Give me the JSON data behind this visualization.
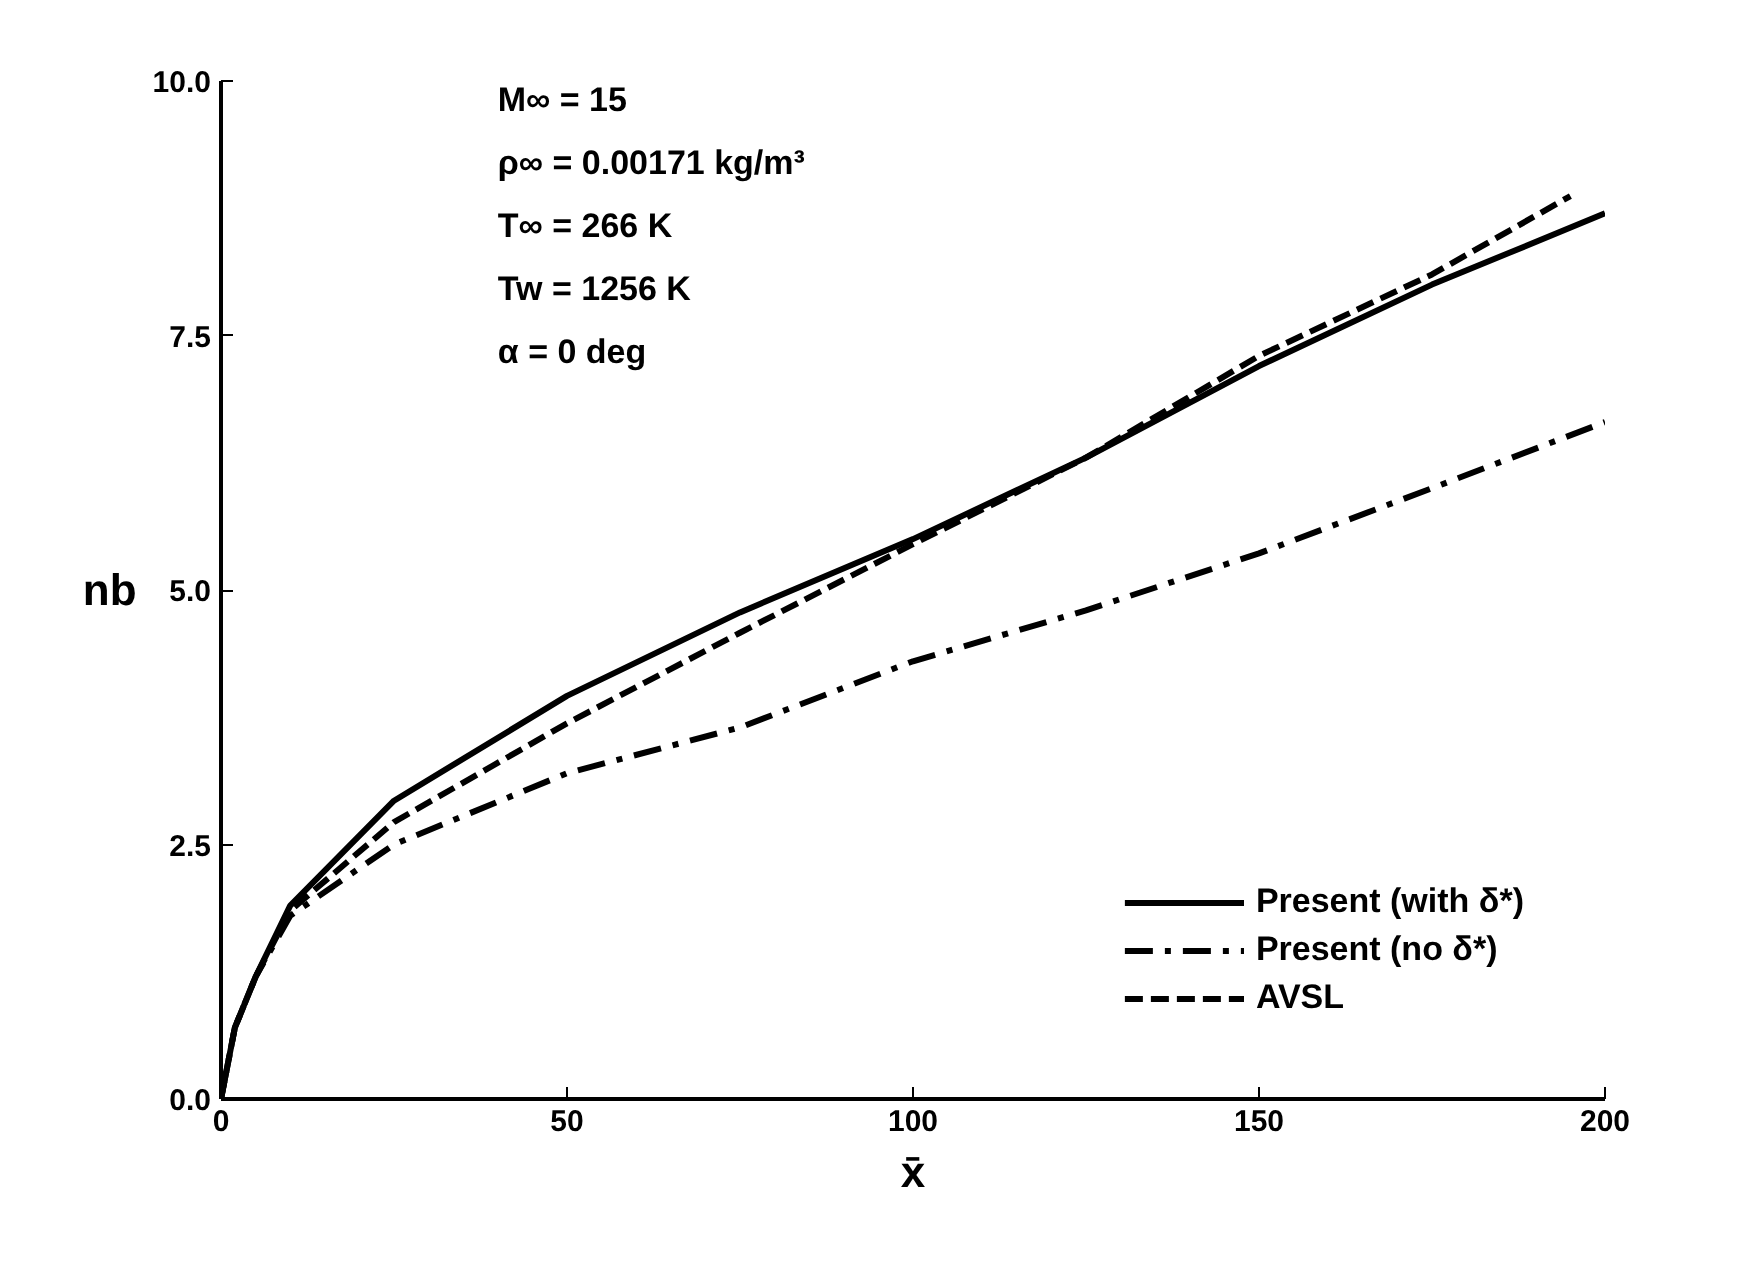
{
  "chart_data": {
    "type": "line",
    "xlabel": "x̄",
    "ylabel": "nb",
    "x": [
      0,
      2,
      5,
      10,
      25,
      50,
      75,
      100,
      125,
      150,
      175,
      200
    ],
    "series": [
      {
        "name": "Present (with δ*)",
        "color": "#000000",
        "line_style": "solid",
        "values": [
          0,
          0.7,
          1.2,
          1.9,
          2.93,
          3.96,
          4.78,
          5.5,
          6.3,
          7.2,
          8.0,
          8.7
        ]
      },
      {
        "name": "Present (no δ*)",
        "color": "#000000",
        "line_style": "dashdot",
        "values": [
          0,
          0.7,
          1.2,
          1.8,
          2.5,
          3.2,
          3.65,
          4.3,
          4.8,
          5.36,
          6.0,
          6.65
        ]
      },
      {
        "name": "AVSL",
        "color": "#000000",
        "line_style": "dashed",
        "x": [
          0,
          2,
          5,
          10,
          25,
          50,
          75,
          100,
          125,
          150,
          175,
          195
        ],
        "values": [
          0,
          0.7,
          1.2,
          1.85,
          2.72,
          3.69,
          4.58,
          5.45,
          6.3,
          7.3,
          8.1,
          8.87
        ]
      }
    ],
    "xlim": [
      0,
      200
    ],
    "ylim": [
      0,
      10
    ],
    "xticks": [
      0,
      50,
      100,
      150,
      200
    ],
    "yticks": [
      {
        "value": 0,
        "label": "0.0"
      },
      {
        "value": 2.5,
        "label": "2.5"
      },
      {
        "value": 5,
        "label": "5.0"
      },
      {
        "value": 7.5,
        "label": "7.5"
      },
      {
        "value": 10,
        "label": "10.0"
      }
    ],
    "annotations": [
      "M∞ = 15",
      "ρ∞ = 0.00171 kg/m³",
      "T∞ = 266 K",
      "Tw = 1256 K",
      "α = 0 deg"
    ],
    "grid": false,
    "legend": "bottom right"
  }
}
